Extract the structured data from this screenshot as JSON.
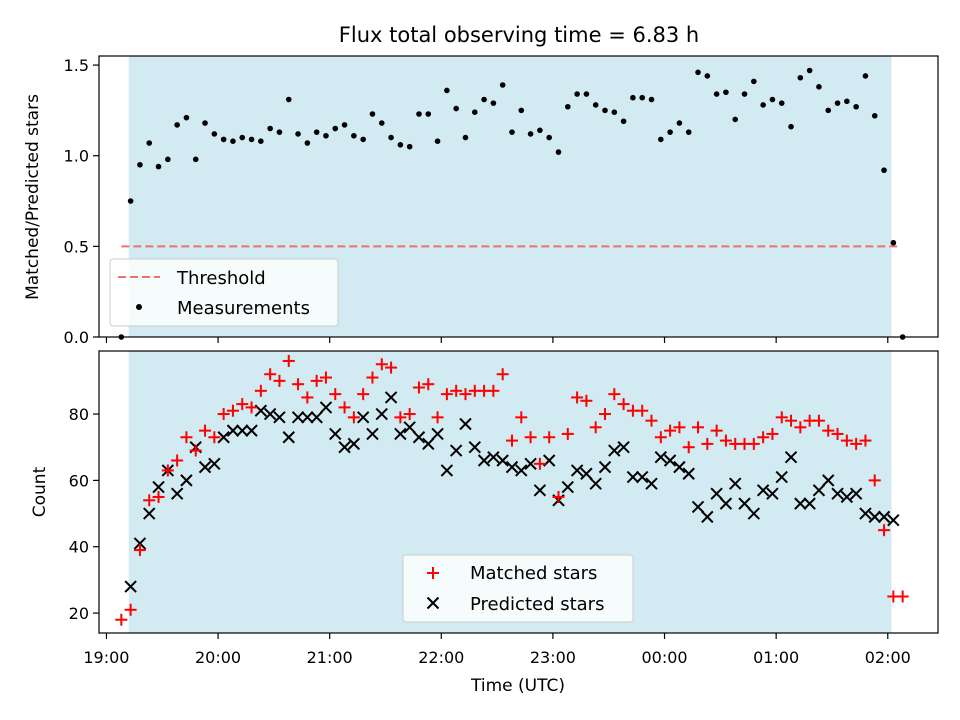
{
  "title": "Flux total observing time = 6.83 h",
  "colors": {
    "shade": "#add8e6",
    "threshold": "#f07070",
    "matched": "#ff0000",
    "measurements": "#000000",
    "predicted": "#000000"
  },
  "chart_data": [
    {
      "type": "scatter",
      "ylabel": "Matched/Predicted stars",
      "xlim": [
        "2024-01-01T18:56:00",
        "2024-01-02T02:27:00"
      ],
      "ylim": [
        0,
        1.55
      ],
      "yticks": [
        "0.0",
        "0.5",
        "1.0",
        "1.5"
      ],
      "shaded_region": [
        "2024-01-01T19:12:00",
        "2024-01-02T02:02:00"
      ],
      "legend": {
        "location": "lower-left",
        "entries": [
          "Threshold",
          "Measurements"
        ]
      },
      "threshold": {
        "name": "Threshold",
        "value": 0.5,
        "x": [
          "2024-01-01T19:08:00",
          "2024-01-02T02:05:00"
        ]
      },
      "measurements": {
        "name": "Measurements",
        "x": [
          "19:08",
          "19:13",
          "19:18",
          "19:23",
          "19:28",
          "19:33",
          "19:38",
          "19:43",
          "19:48",
          "19:53",
          "19:58",
          "20:03",
          "20:08",
          "20:13",
          "20:18",
          "20:23",
          "20:28",
          "20:33",
          "20:38",
          "20:43",
          "20:48",
          "20:53",
          "20:58",
          "21:03",
          "21:08",
          "21:13",
          "21:18",
          "21:23",
          "21:28",
          "21:33",
          "21:38",
          "21:43",
          "21:48",
          "21:53",
          "21:58",
          "22:03",
          "22:08",
          "22:13",
          "22:18",
          "22:23",
          "22:28",
          "22:33",
          "22:38",
          "22:43",
          "22:48",
          "22:53",
          "22:58",
          "23:03",
          "23:08",
          "23:13",
          "23:18",
          "23:23",
          "23:28",
          "23:33",
          "23:38",
          "23:43",
          "23:48",
          "23:53",
          "23:58",
          "00:03",
          "00:08",
          "00:13",
          "00:18",
          "00:23",
          "00:28",
          "00:33",
          "00:38",
          "00:43",
          "00:48",
          "00:53",
          "00:58",
          "01:03",
          "01:08",
          "01:13",
          "01:18",
          "01:23",
          "01:28",
          "01:33",
          "01:38",
          "01:43",
          "01:48",
          "01:53",
          "01:58",
          "02:03",
          "02:08"
        ],
        "y": [
          0.0,
          0.75,
          0.95,
          1.07,
          0.94,
          0.98,
          1.17,
          1.21,
          0.98,
          1.18,
          1.12,
          1.09,
          1.08,
          1.1,
          1.09,
          1.08,
          1.15,
          1.13,
          1.31,
          1.12,
          1.07,
          1.13,
          1.11,
          1.15,
          1.17,
          1.11,
          1.09,
          1.23,
          1.18,
          1.1,
          1.06,
          1.05,
          1.23,
          1.23,
          1.08,
          1.36,
          1.26,
          1.1,
          1.24,
          1.31,
          1.29,
          1.39,
          1.13,
          1.25,
          1.12,
          1.14,
          1.1,
          1.02,
          1.27,
          1.34,
          1.34,
          1.28,
          1.25,
          1.24,
          1.19,
          1.32,
          1.32,
          1.31,
          1.09,
          1.13,
          1.18,
          1.13,
          1.46,
          1.44,
          1.34,
          1.35,
          1.2,
          1.34,
          1.41,
          1.28,
          1.31,
          1.29,
          1.16,
          1.43,
          1.47,
          1.38,
          1.25,
          1.29,
          1.3,
          1.27,
          1.44,
          1.22,
          0.92,
          0.52,
          0.0
        ]
      }
    },
    {
      "type": "scatter",
      "xlabel": "Time (UTC)",
      "ylabel": "Count",
      "xlim": [
        "2024-01-01T18:56:00",
        "2024-01-02T02:27:00"
      ],
      "ylim": [
        14,
        99
      ],
      "yticks": [
        "20",
        "40",
        "60",
        "80"
      ],
      "xticks": [
        "19:00",
        "20:00",
        "21:00",
        "22:00",
        "23:00",
        "00:00",
        "01:00",
        "02:00"
      ],
      "shaded_region": [
        "2024-01-01T19:12:00",
        "2024-01-02T02:02:00"
      ],
      "legend": {
        "location": "lower-center",
        "entries": [
          "Matched stars",
          "Predicted stars"
        ]
      },
      "series": [
        {
          "name": "Matched stars",
          "marker": "plus",
          "x": [
            "19:08",
            "19:13",
            "19:18",
            "19:23",
            "19:28",
            "19:33",
            "19:38",
            "19:43",
            "19:48",
            "19:53",
            "19:58",
            "20:03",
            "20:08",
            "20:13",
            "20:18",
            "20:23",
            "20:28",
            "20:33",
            "20:38",
            "20:43",
            "20:48",
            "20:53",
            "20:58",
            "21:03",
            "21:08",
            "21:13",
            "21:18",
            "21:23",
            "21:28",
            "21:33",
            "21:38",
            "21:43",
            "21:48",
            "21:53",
            "21:58",
            "22:03",
            "22:08",
            "22:13",
            "22:18",
            "22:23",
            "22:28",
            "22:33",
            "22:38",
            "22:43",
            "22:48",
            "22:53",
            "22:58",
            "23:03",
            "23:08",
            "23:13",
            "23:18",
            "23:23",
            "23:28",
            "23:33",
            "23:38",
            "23:43",
            "23:48",
            "23:53",
            "23:58",
            "00:03",
            "00:08",
            "00:13",
            "00:18",
            "00:23",
            "00:28",
            "00:33",
            "00:38",
            "00:43",
            "00:48",
            "00:53",
            "00:58",
            "01:03",
            "01:08",
            "01:13",
            "01:18",
            "01:23",
            "01:28",
            "01:33",
            "01:38",
            "01:43",
            "01:48",
            "01:53",
            "01:58",
            "02:03",
            "02:08"
          ],
          "y": [
            18,
            21,
            39,
            54,
            55,
            63,
            66,
            73,
            69,
            75,
            73,
            80,
            81,
            83,
            82,
            87,
            92,
            90,
            96,
            89,
            85,
            90,
            91,
            86,
            82,
            79,
            86,
            91,
            95,
            94,
            79,
            80,
            88,
            89,
            79,
            86,
            87,
            86,
            87,
            87,
            87,
            92,
            72,
            79,
            73,
            65,
            73,
            55,
            74,
            85,
            84,
            76,
            80,
            86,
            83,
            81,
            81,
            78,
            73,
            75,
            76,
            70,
            76,
            71,
            75,
            72,
            71,
            71,
            71,
            73,
            74,
            79,
            78,
            76,
            78,
            78,
            75,
            74,
            72,
            71,
            72,
            60,
            45,
            25,
            25
          ]
        },
        {
          "name": "Predicted stars",
          "marker": "x",
          "x": [
            "19:13",
            "19:18",
            "19:23",
            "19:28",
            "19:33",
            "19:38",
            "19:43",
            "19:48",
            "19:53",
            "19:58",
            "20:03",
            "20:08",
            "20:13",
            "20:18",
            "20:23",
            "20:28",
            "20:33",
            "20:38",
            "20:43",
            "20:48",
            "20:53",
            "20:58",
            "21:03",
            "21:08",
            "21:13",
            "21:18",
            "21:23",
            "21:28",
            "21:33",
            "21:38",
            "21:43",
            "21:48",
            "21:53",
            "21:58",
            "22:03",
            "22:08",
            "22:13",
            "22:18",
            "22:23",
            "22:28",
            "22:33",
            "22:38",
            "22:43",
            "22:48",
            "22:53",
            "22:58",
            "23:03",
            "23:08",
            "23:13",
            "23:18",
            "23:23",
            "23:28",
            "23:33",
            "23:38",
            "23:43",
            "23:48",
            "23:53",
            "23:58",
            "00:03",
            "00:08",
            "00:13",
            "00:18",
            "00:23",
            "00:28",
            "00:33",
            "00:38",
            "00:43",
            "00:48",
            "00:53",
            "00:58",
            "01:03",
            "01:08",
            "01:13",
            "01:18",
            "01:23",
            "01:28",
            "01:33",
            "01:38",
            "01:43",
            "01:48",
            "01:53",
            "01:58",
            "02:03"
          ],
          "y": [
            28,
            41,
            50,
            58,
            63,
            56,
            60,
            70,
            64,
            65,
            73,
            75,
            75,
            75,
            81,
            80,
            79,
            73,
            79,
            79,
            79,
            82,
            74,
            70,
            71,
            79,
            74,
            80,
            85,
            74,
            76,
            73,
            71,
            74,
            63,
            69,
            77,
            70,
            66,
            67,
            66,
            64,
            63,
            65,
            57,
            66,
            54,
            58,
            63,
            62,
            59,
            64,
            69,
            70,
            61,
            61,
            59,
            67,
            66,
            64,
            62,
            52,
            49,
            56,
            53,
            59,
            53,
            50,
            57,
            56,
            61,
            67,
            53,
            53,
            57,
            60,
            56,
            55,
            56,
            50,
            49,
            49,
            48
          ]
        }
      ]
    }
  ]
}
